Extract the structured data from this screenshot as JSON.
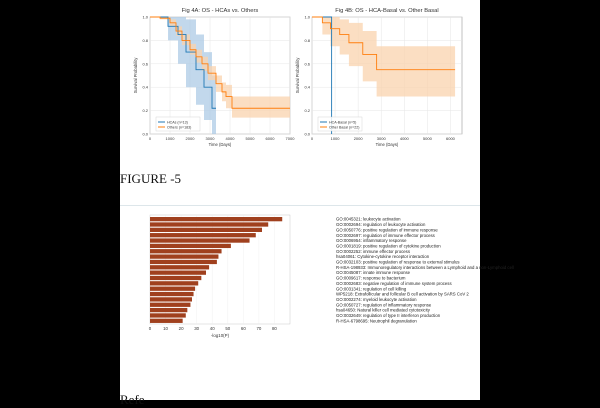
{
  "figure4": {
    "panels": [
      {
        "title": "Fig 4A: OS - HCAs vs. Others",
        "xlabel": "Time (Days)",
        "ylabel": "Survival Probability",
        "x_ticks": [
          "0",
          "1000",
          "2000",
          "3000",
          "4000",
          "5000",
          "6000",
          "7000"
        ],
        "y_ticks": [
          "0.0",
          "0.2",
          "0.4",
          "0.6",
          "0.8",
          "1.0"
        ],
        "legend": [
          "HCAs (n=13)",
          "Others (n=183)"
        ]
      },
      {
        "title": "Fig 4B: OS - HCA-Basal vs. Other Basal",
        "xlabel": "Time (Days)",
        "ylabel": "Survival Probability",
        "x_ticks": [
          "0",
          "1000",
          "2000",
          "3000",
          "4000",
          "5000",
          "6000"
        ],
        "y_ticks": [
          "0.0",
          "0.2",
          "0.4",
          "0.6",
          "0.8",
          "1.0"
        ],
        "legend": [
          "HCA-Basal (n=5)",
          "Other Basal (n=22)"
        ]
      }
    ]
  },
  "caption": "FIGURE -5",
  "reference_heading": "Refe",
  "colors": {
    "bar": "#a0401e",
    "hca": "#1f77b4",
    "others": "#ff7f0e",
    "ci_hca": "#aecbe6",
    "ci_others": "#f9d3ad"
  },
  "chart_data": [
    {
      "type": "line",
      "title": "Fig 4A: OS - HCAs vs. Others",
      "xlabel": "Time (Days)",
      "ylabel": "Survival Probability",
      "xlim": [
        0,
        7000
      ],
      "ylim": [
        0,
        1
      ],
      "series": [
        {
          "name": "HCAs (n=13)",
          "color": "#1f77b4",
          "x": [
            0,
            900,
            1400,
            1800,
            2300,
            2700,
            3100,
            3300
          ],
          "y": [
            1.0,
            0.92,
            0.85,
            0.7,
            0.55,
            0.4,
            0.22,
            0.22
          ],
          "ci_low": [
            1.0,
            0.8,
            0.6,
            0.4,
            0.25,
            0.12,
            0.0,
            0.0
          ],
          "ci_high": [
            1.0,
            1.0,
            1.0,
            0.98,
            0.85,
            0.7,
            0.5,
            0.5
          ]
        },
        {
          "name": "Others (n=183)",
          "color": "#ff7f0e",
          "x": [
            0,
            500,
            1000,
            1300,
            1600,
            2000,
            2300,
            2600,
            2900,
            3300,
            3600,
            3800,
            4100,
            7000
          ],
          "y": [
            1.0,
            0.99,
            0.95,
            0.88,
            0.8,
            0.72,
            0.66,
            0.6,
            0.52,
            0.43,
            0.36,
            0.32,
            0.22,
            0.22
          ],
          "ci_low": [
            1.0,
            0.98,
            0.92,
            0.84,
            0.76,
            0.68,
            0.61,
            0.54,
            0.46,
            0.36,
            0.28,
            0.22,
            0.14,
            0.14
          ],
          "ci_high": [
            1.0,
            1.0,
            0.98,
            0.92,
            0.85,
            0.77,
            0.72,
            0.66,
            0.58,
            0.5,
            0.44,
            0.42,
            0.32,
            0.32
          ]
        }
      ]
    },
    {
      "type": "line",
      "title": "Fig 4B: OS - HCA-Basal vs. Other Basal",
      "xlabel": "Time (Days)",
      "ylabel": "Survival Probability",
      "xlim": [
        0,
        6500
      ],
      "ylim": [
        0,
        1
      ],
      "series": [
        {
          "name": "HCA-Basal (n=5)",
          "color": "#1f77b4",
          "x": [
            0,
            850,
            850
          ],
          "y": [
            1.0,
            1.0,
            0.0
          ]
        },
        {
          "name": "Other Basal (n=22)",
          "color": "#ff7f0e",
          "x": [
            0,
            450,
            800,
            1200,
            1600,
            2200,
            2800,
            6200
          ],
          "y": [
            1.0,
            0.95,
            0.9,
            0.85,
            0.78,
            0.68,
            0.55,
            0.55
          ],
          "ci_low": [
            1.0,
            0.85,
            0.75,
            0.68,
            0.58,
            0.45,
            0.32,
            0.32
          ],
          "ci_high": [
            1.0,
            1.0,
            1.0,
            0.98,
            0.95,
            0.88,
            0.75,
            0.75
          ]
        }
      ]
    },
    {
      "type": "bar",
      "orientation": "horizontal",
      "xlabel": "-log10(P)",
      "xlim": [
        0,
        90
      ],
      "x_ticks": [
        "0",
        "10",
        "20",
        "30",
        "40",
        "50",
        "60",
        "70",
        "80"
      ],
      "color": "#a0401e",
      "categories": [
        "GO:0045321: leukocyte activation",
        "GO:0002694: regulation of leukocyte activation",
        "GO:0050776: positive regulation of immune response",
        "GO:0002697: regulation of immune effector process",
        "GO:0006954: inflammatory response",
        "GO:0001819: positive regulation of cytokine production",
        "GO:0002252: immune effector process",
        "hsa04061: Cytokine-cytokine receptor interaction",
        "GO:0032103: positive regulation of response to external stimulus",
        "R-HSA-198933: Immunoregulatory interactions between a Lymphoid and a non-Lymphoid cell",
        "GO:0045087: innate immune response",
        "GO:0009617: response to bacterium",
        "GO:0002683: negative regulation of immune system process",
        "GO:0031341: regulation of cell killing",
        "WP5218: Extrafollicular and follicular B cell activation by SARS CoV 2",
        "GO:0002274: myeloid leukocyte activation",
        "GO:0050727: regulation of inflammatory response",
        "hsa04650: Natural killer cell mediated cytotoxicity",
        "GO:0032649: regulation of type II interferon production",
        "R-HSA-6798695: Neutrophil degranulation"
      ],
      "values": [
        85,
        76,
        72,
        68,
        64,
        52,
        46,
        44,
        43,
        38,
        36,
        33,
        31,
        29,
        28,
        27,
        26,
        24,
        23,
        21
      ]
    }
  ]
}
